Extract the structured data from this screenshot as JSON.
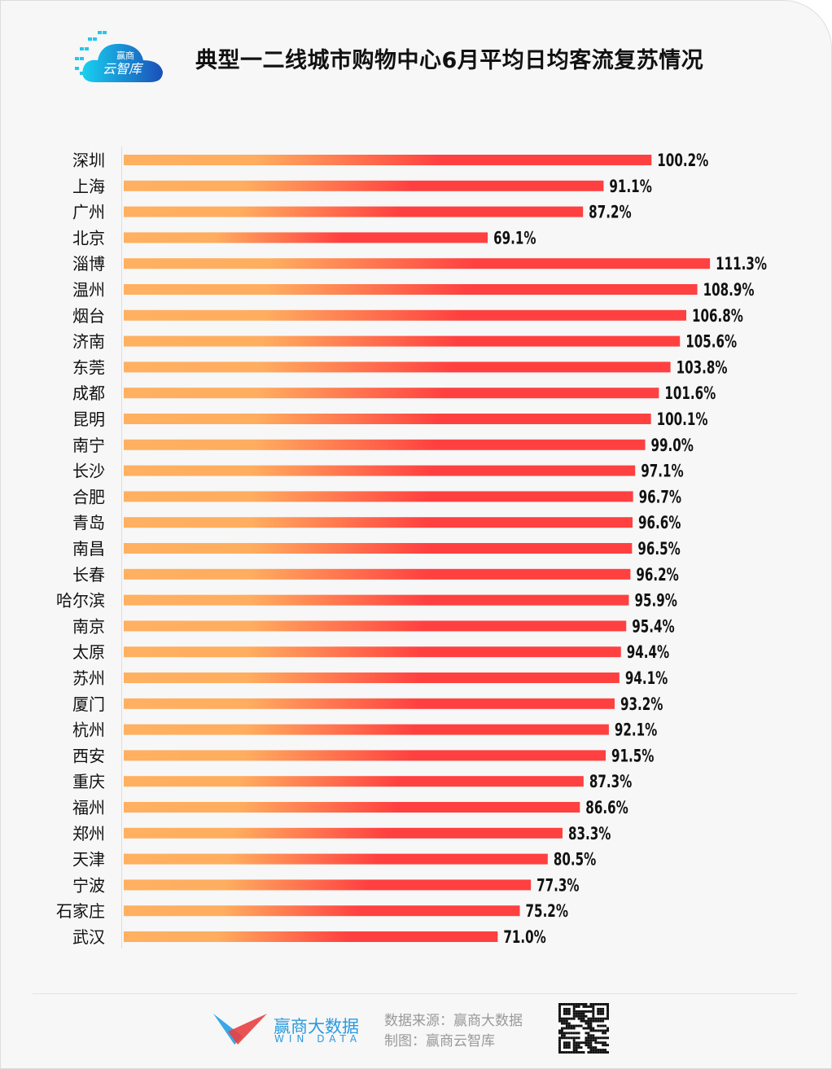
{
  "header": {
    "title": "典型一二线城市购物中心6月平均日均客流复苏情况",
    "logo_text_1": "赢商",
    "logo_text_2": "云智库"
  },
  "footer": {
    "brand_cn": "赢商大数据",
    "brand_en": "WIN DATA",
    "source": "数据来源：赢商大数据",
    "made_by": "制图：赢商云智库"
  },
  "colors": {
    "bar_start": "#ffb060",
    "bar_end": "#ff4040",
    "label": "#111111"
  },
  "chart_data": {
    "type": "bar",
    "orientation": "horizontal",
    "title": "典型一二线城市购物中心6月平均日均客流复苏情况",
    "xlabel": "",
    "ylabel": "",
    "xlim": [
      0,
      115
    ],
    "grid": false,
    "categories": [
      "深圳",
      "上海",
      "广州",
      "北京",
      "淄博",
      "温州",
      "烟台",
      "济南",
      "东莞",
      "成都",
      "昆明",
      "南宁",
      "长沙",
      "合肥",
      "青岛",
      "南昌",
      "长春",
      "哈尔滨",
      "南京",
      "太原",
      "苏州",
      "厦门",
      "杭州",
      "西安",
      "重庆",
      "福州",
      "郑州",
      "天津",
      "宁波",
      "石家庄",
      "武汉"
    ],
    "values": [
      100.2,
      91.1,
      87.2,
      69.1,
      111.3,
      108.9,
      106.8,
      105.6,
      103.8,
      101.6,
      100.1,
      99.0,
      97.1,
      96.7,
      96.6,
      96.5,
      96.2,
      95.9,
      95.4,
      94.4,
      94.1,
      93.2,
      92.1,
      91.5,
      87.3,
      86.6,
      83.3,
      80.5,
      77.3,
      75.2,
      71.0
    ],
    "labels": [
      "100.2%",
      "91.1%",
      "87.2%",
      "69.1%",
      "111.3%",
      "108.9%",
      "106.8%",
      "105.6%",
      "103.8%",
      "101.6%",
      "100.1%",
      "99.0%",
      "97.1%",
      "96.7%",
      "96.6%",
      "96.5%",
      "96.2%",
      "95.9%",
      "95.4%",
      "94.4%",
      "94.1%",
      "93.2%",
      "92.1%",
      "91.5%",
      "87.3%",
      "86.6%",
      "83.3%",
      "80.5%",
      "77.3%",
      "75.2%",
      "71.0%"
    ]
  }
}
